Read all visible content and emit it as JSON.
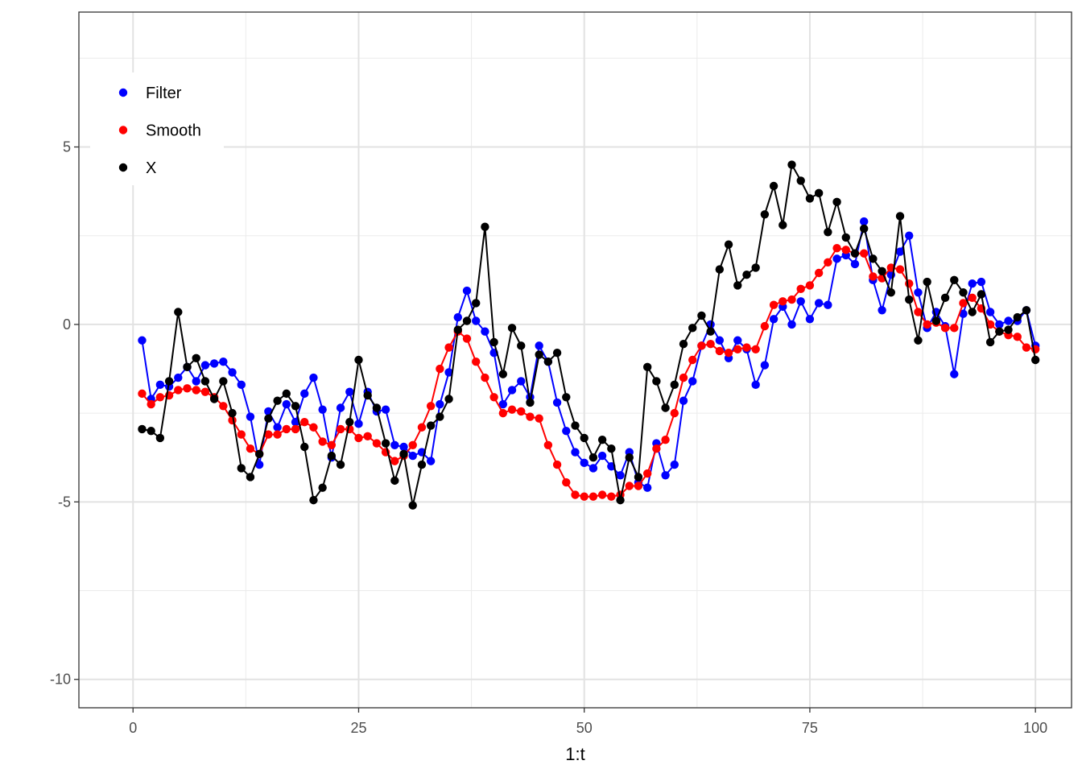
{
  "chart_data": {
    "type": "line",
    "title": "",
    "xlabel": "1:t",
    "ylabel": "",
    "xlim": [
      -6,
      104
    ],
    "ylim": [
      -10.8,
      8.8
    ],
    "x_ticks": [
      0,
      25,
      50,
      75,
      100
    ],
    "x_tick_labels": [
      "0",
      "25",
      "50",
      "75",
      "100"
    ],
    "y_ticks": [
      -10,
      -5,
      0,
      5
    ],
    "y_tick_labels": [
      "-10",
      "-5",
      "0",
      "5"
    ],
    "grid": true,
    "legend_position": "top-left",
    "x": [
      1,
      2,
      3,
      4,
      5,
      6,
      7,
      8,
      9,
      10,
      11,
      12,
      13,
      14,
      15,
      16,
      17,
      18,
      19,
      20,
      21,
      22,
      23,
      24,
      25,
      26,
      27,
      28,
      29,
      30,
      31,
      32,
      33,
      34,
      35,
      36,
      37,
      38,
      39,
      40,
      41,
      42,
      43,
      44,
      45,
      46,
      47,
      48,
      49,
      50,
      51,
      52,
      53,
      54,
      55,
      56,
      57,
      58,
      59,
      60,
      61,
      62,
      63,
      64,
      65,
      66,
      67,
      68,
      69,
      70,
      71,
      72,
      73,
      74,
      75,
      76,
      77,
      78,
      79,
      80,
      81,
      82,
      83,
      84,
      85,
      86,
      87,
      88,
      89,
      90,
      91,
      92,
      93,
      94,
      95,
      96,
      97,
      98,
      99,
      100
    ],
    "series": [
      {
        "name": "Filter",
        "color": "#0000ff",
        "values": [
          -0.45,
          -2.1,
          -1.7,
          -1.75,
          -1.5,
          -1.2,
          -1.6,
          -1.15,
          -1.1,
          -1.05,
          -1.35,
          -1.7,
          -2.6,
          -3.95,
          -2.45,
          -2.9,
          -2.25,
          -2.75,
          -1.95,
          -1.5,
          -2.4,
          -3.75,
          -2.35,
          -1.9,
          -2.8,
          -1.9,
          -2.45,
          -2.4,
          -3.4,
          -3.45,
          -3.7,
          -3.6,
          -3.85,
          -2.25,
          -1.35,
          0.2,
          0.95,
          0.1,
          -0.2,
          -0.8,
          -2.25,
          -1.85,
          -1.6,
          -2.05,
          -0.6,
          -1.05,
          -2.2,
          -3.0,
          -3.6,
          -3.9,
          -4.05,
          -3.7,
          -4.0,
          -4.25,
          -3.6,
          -4.45,
          -4.6,
          -3.35,
          -4.25,
          -3.95,
          -2.15,
          -1.6,
          -0.6,
          0.0,
          -0.45,
          -0.95,
          -0.45,
          -0.7,
          -1.7,
          -1.15,
          0.15,
          0.5,
          0.0,
          0.65,
          0.15,
          0.6,
          0.55,
          1.85,
          1.95,
          1.7,
          2.9,
          1.25,
          0.4,
          1.4,
          2.05,
          2.5,
          0.9,
          -0.1,
          0.35,
          -0.05,
          -1.4,
          0.3,
          1.15,
          1.2,
          0.35,
          0.0,
          0.1,
          0.1,
          0.4,
          -0.6
        ]
      },
      {
        "name": "Smooth",
        "color": "#ff0000",
        "values": [
          -1.95,
          -2.25,
          -2.05,
          -2.0,
          -1.85,
          -1.8,
          -1.85,
          -1.9,
          -2.05,
          -2.3,
          -2.7,
          -3.1,
          -3.5,
          -3.65,
          -3.1,
          -3.1,
          -2.95,
          -2.95,
          -2.75,
          -2.9,
          -3.3,
          -3.4,
          -2.95,
          -2.95,
          -3.2,
          -3.15,
          -3.35,
          -3.6,
          -3.85,
          -3.7,
          -3.4,
          -2.9,
          -2.3,
          -1.25,
          -0.65,
          -0.2,
          -0.4,
          -1.05,
          -1.5,
          -2.05,
          -2.5,
          -2.4,
          -2.45,
          -2.6,
          -2.65,
          -3.4,
          -3.95,
          -4.45,
          -4.8,
          -4.85,
          -4.85,
          -4.8,
          -4.85,
          -4.8,
          -4.55,
          -4.55,
          -4.2,
          -3.5,
          -3.25,
          -2.5,
          -1.5,
          -1.0,
          -0.6,
          -0.55,
          -0.75,
          -0.8,
          -0.7,
          -0.65,
          -0.7,
          -0.05,
          0.55,
          0.65,
          0.7,
          1.0,
          1.1,
          1.45,
          1.75,
          2.15,
          2.1,
          2.0,
          2.0,
          1.35,
          1.3,
          1.6,
          1.55,
          1.15,
          0.35,
          0.0,
          0.05,
          -0.1,
          -0.1,
          0.6,
          0.75,
          0.45,
          0.0,
          -0.2,
          -0.3,
          -0.35,
          -0.65,
          -0.7
        ]
      },
      {
        "name": "X",
        "color": "#000000",
        "values": [
          -2.95,
          -3.0,
          -3.2,
          -1.6,
          0.35,
          -1.2,
          -0.95,
          -1.6,
          -2.1,
          -1.6,
          -2.5,
          -4.05,
          -4.3,
          -3.65,
          -2.65,
          -2.15,
          -1.95,
          -2.3,
          -3.45,
          -4.95,
          -4.6,
          -3.7,
          -3.95,
          -2.75,
          -1.0,
          -2.0,
          -2.35,
          -3.35,
          -4.4,
          -3.65,
          -5.1,
          -3.95,
          -2.85,
          -2.6,
          -2.1,
          -0.15,
          0.1,
          0.6,
          2.75,
          -0.5,
          -1.4,
          -0.1,
          -0.6,
          -2.2,
          -0.85,
          -1.05,
          -0.8,
          -2.05,
          -2.85,
          -3.2,
          -3.75,
          -3.25,
          -3.5,
          -4.95,
          -3.75,
          -4.3,
          -1.2,
          -1.6,
          -2.35,
          -1.7,
          -0.55,
          -0.1,
          0.25,
          -0.2,
          1.55,
          2.25,
          1.1,
          1.4,
          1.6,
          3.1,
          3.9,
          2.8,
          4.5,
          4.05,
          3.55,
          3.7,
          2.6,
          3.45,
          2.45,
          2.0,
          2.7,
          1.85,
          1.5,
          0.9,
          3.05,
          0.7,
          -0.45,
          1.2,
          0.1,
          0.75,
          1.25,
          0.9,
          0.35,
          0.85,
          -0.5,
          -0.2,
          -0.15,
          0.2,
          0.4,
          -1.0
        ]
      }
    ]
  }
}
